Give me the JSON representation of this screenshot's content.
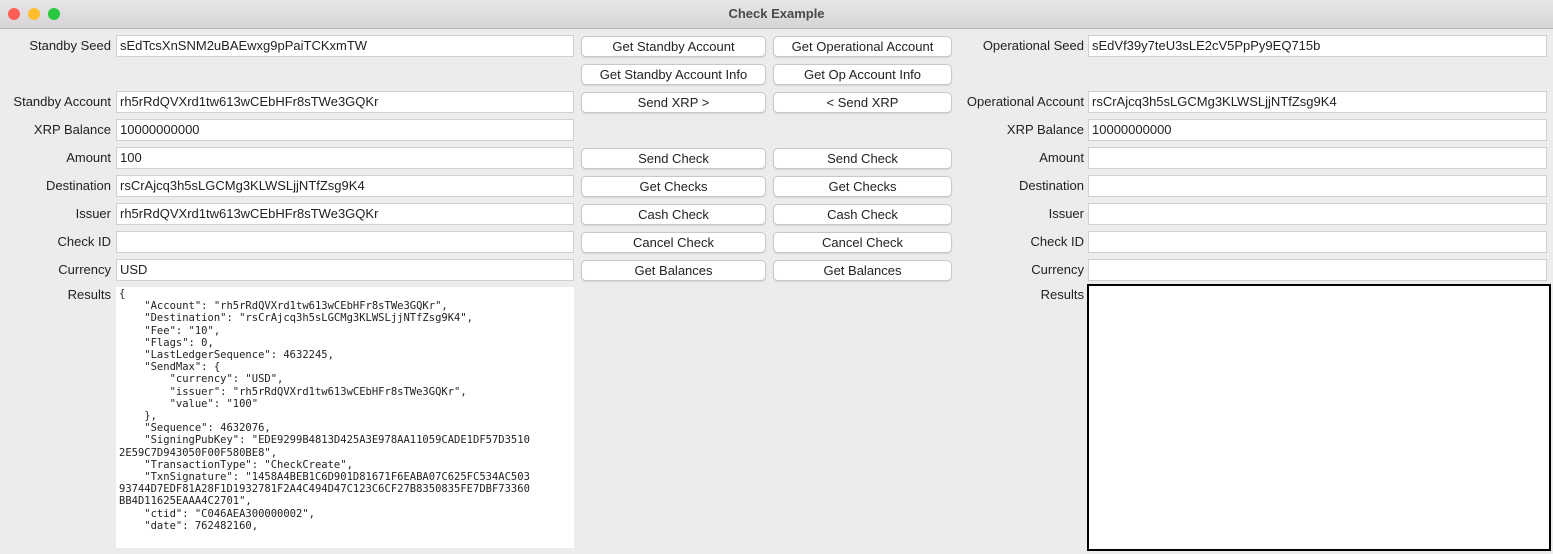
{
  "window": {
    "title": "Check Example"
  },
  "standby": {
    "seed_label": "Standby Seed",
    "seed": "sEdTcsXnSNM2uBAEwxg9pPaiTCKxmTW",
    "account_label": "Standby Account",
    "account": "rh5rRdQVXrd1tw613wCEbHFr8sTWe3GQKr",
    "balance_label": "XRP Balance",
    "balance": "10000000000",
    "amount_label": "Amount",
    "amount": "100",
    "destination_label": "Destination",
    "destination": "rsCrAjcq3h5sLGCMg3KLWSLjjNTfZsg9K4",
    "issuer_label": "Issuer",
    "issuer": "rh5rRdQVXrd1tw613wCEbHFr8sTWe3GQKr",
    "checkid_label": "Check ID",
    "checkid": "",
    "currency_label": "Currency",
    "currency": "USD",
    "results_label": "Results",
    "results": "{\n    \"Account\": \"rh5rRdQVXrd1tw613wCEbHFr8sTWe3GQKr\",\n    \"Destination\": \"rsCrAjcq3h5sLGCMg3KLWSLjjNTfZsg9K4\",\n    \"Fee\": \"10\",\n    \"Flags\": 0,\n    \"LastLedgerSequence\": 4632245,\n    \"SendMax\": {\n        \"currency\": \"USD\",\n        \"issuer\": \"rh5rRdQVXrd1tw613wCEbHFr8sTWe3GQKr\",\n        \"value\": \"100\"\n    },\n    \"Sequence\": 4632076,\n    \"SigningPubKey\": \"EDE9299B4813D425A3E978AA11059CADE1DF57D3510\n2E59C7D943050F00F580BE8\",\n    \"TransactionType\": \"CheckCreate\",\n    \"TxnSignature\": \"1458A4BEB1C6D901D81671F6EABA07C625FC534AC503\n93744D7EDF81A28F1D1932781F2A4C494D47C123C6CF27B8350835FE7DBF73360\nBB4D11625EAAA4C2701\",\n    \"ctid\": \"C046AEA300000002\",\n    \"date\": 762482160,"
  },
  "operational": {
    "seed_label": "Operational Seed",
    "seed": "sEdVf39y7teU3sLE2cV5PpPy9EQ715b",
    "account_label": "Operational Account",
    "account": "rsCrAjcq3h5sLGCMg3KLWSLjjNTfZsg9K4",
    "balance_label": "XRP Balance",
    "balance": "10000000000",
    "amount_label": "Amount",
    "amount": "",
    "destination_label": "Destination",
    "destination": "",
    "issuer_label": "Issuer",
    "issuer": "",
    "checkid_label": "Check ID",
    "checkid": "",
    "currency_label": "Currency",
    "currency": "",
    "results_label": "Results",
    "results": ""
  },
  "buttons": {
    "get_standby_account": "Get Standby Account",
    "get_operational_account": "Get Operational Account",
    "get_standby_info": "Get Standby Account Info",
    "get_op_info": "Get Op Account Info",
    "send_xrp_right": "Send XRP >",
    "send_xrp_left": "< Send XRP",
    "sb_send_check": "Send  Check",
    "op_send_check": "Send Check",
    "sb_get_checks": "Get Checks",
    "op_get_checks": "Get Checks",
    "sb_cash_check": "Cash  Check",
    "op_cash_check": "Cash Check",
    "sb_cancel_check": "Cancel  Check",
    "op_cancel_check": "Cancel Check",
    "sb_get_balances": "Get Balances",
    "op_get_balances": "Get Balances"
  }
}
